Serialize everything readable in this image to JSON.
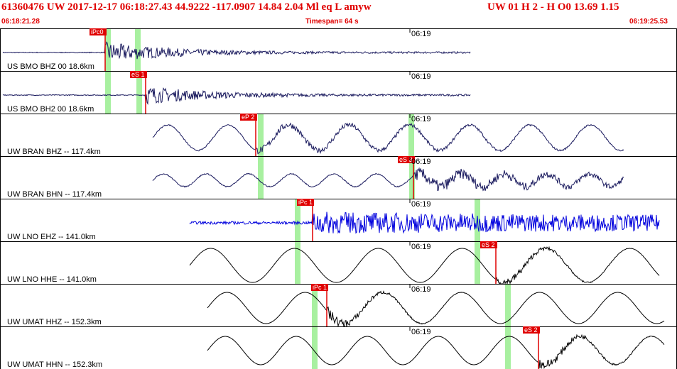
{
  "header": {
    "title_left": "61360476 UW 2017-12-17 06:18:27.43   44.9222 -117.0907  14.84  2.04 Ml  eq  L amyw",
    "title_right": "UW 01  H   2  -  H O0    13.69   1.15",
    "start_time": "06:18:21.28",
    "timespan": "Timespan=  64 s",
    "end_time": "06:19:25.53"
  },
  "colors": {
    "header_text": "#e00000",
    "trace_dark": "#1a1a5e",
    "trace_blue": "#0000dd",
    "trace_black": "#000000",
    "pick_red": "#e00000",
    "window_green": "#a8f0a0"
  },
  "traces": [
    {
      "label": "US BMO BHZ 00 18.6km",
      "time_tick": "06:19",
      "pick": "iPc0",
      "color_key": "trace_dark",
      "amp": 0.0,
      "greens": [
        148,
        190
      ]
    },
    {
      "label": "US BMO BH2 00 18.6km",
      "time_tick": "06:19",
      "pick": "eS 1",
      "color_key": "trace_dark",
      "amp": 0.0,
      "greens": [
        148,
        192
      ]
    },
    {
      "label": "UW BRAN BHZ -- 117.4km",
      "time_tick": "06:19",
      "pick": "eP 2",
      "color_key": "trace_dark",
      "amp": 0.0,
      "greens": [
        363,
        575
      ]
    },
    {
      "label": "UW BRAN BHN -- 117.4km",
      "time_tick": "06:19",
      "pick": "eS 3",
      "color_key": "trace_dark",
      "amp": 0.0,
      "greens": [
        363,
        576
      ]
    },
    {
      "label": "UW LNO EHZ -- 141.0km",
      "time_tick": "06:19",
      "pick": "iPc 1",
      "color_key": "trace_blue",
      "amp": 0.0,
      "greens": [
        415,
        668
      ]
    },
    {
      "label": "UW LNO HHE -- 141.0km",
      "time_tick": "06:19",
      "pick": "eS 2",
      "color_key": "trace_black",
      "amp": 0.0,
      "greens": [
        415,
        668
      ]
    },
    {
      "label": "UW UMAT HHZ -- 152.3km",
      "time_tick": "06:19",
      "pick": "iPc 1",
      "color_key": "trace_black",
      "amp": 0.0,
      "greens": [
        439,
        711
      ]
    },
    {
      "label": "UW UMAT HHN -- 152.3km",
      "time_tick": "06:19",
      "pick": "eS 2",
      "color_key": "trace_black",
      "amp": 0.0,
      "greens": [
        439,
        711
      ]
    }
  ]
}
